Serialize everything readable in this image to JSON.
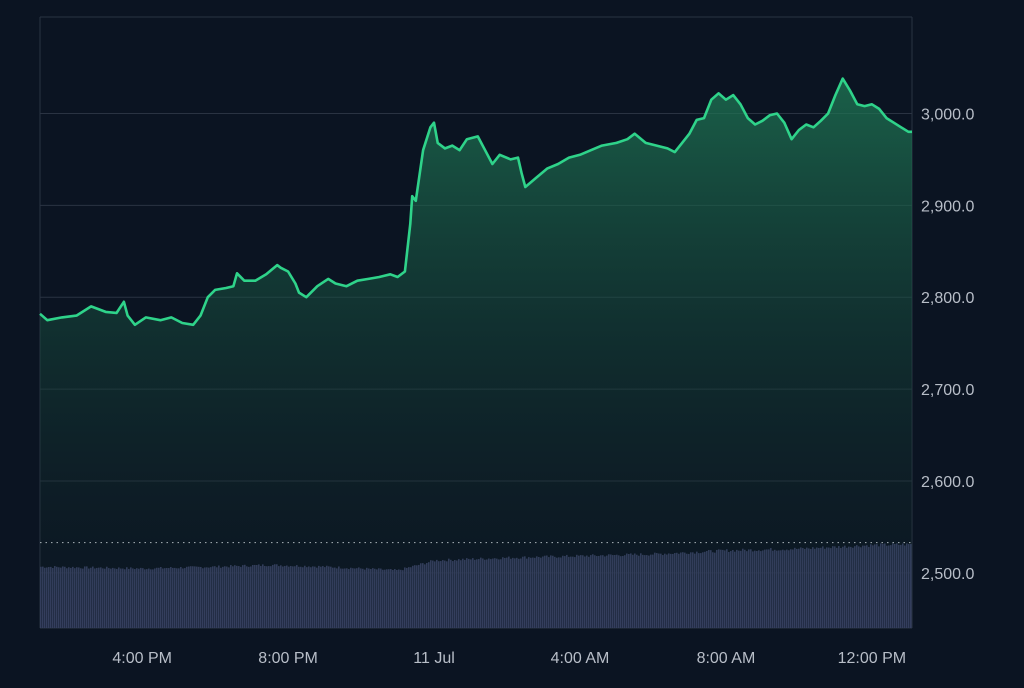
{
  "colors": {
    "background": "#0b1422",
    "grid": "#2a3342",
    "price_line": "#2fd38a",
    "area_top": "#1f7a56",
    "area_bottom": "#0e1a22",
    "volume": "#3b4468",
    "axis_text": "#b8bec8",
    "baseline_dotted": "#c4c9d1"
  },
  "chart_data": {
    "type": "area",
    "title": "",
    "xlabel": "",
    "ylabel": "",
    "y_axis_position": "right",
    "grid": true,
    "ylim": [
      2440,
      3105
    ],
    "y_ticks": [
      2500,
      2600,
      2700,
      2800,
      2900,
      3000
    ],
    "y_tick_labels": [
      "2,500.0",
      "2,600.0",
      "2,700.0",
      "2,800.0",
      "2,900.0",
      "3,000.0"
    ],
    "x_range_hours": [
      13.2,
      37.1
    ],
    "x_ticks": [
      {
        "t": 16,
        "label": "4:00 PM"
      },
      {
        "t": 20,
        "label": "8:00 PM"
      },
      {
        "t": 24,
        "label": "11 Jul"
      },
      {
        "t": 28,
        "label": "4:00 AM"
      },
      {
        "t": 32,
        "label": "8:00 AM"
      },
      {
        "t": 36,
        "label": "12:00 PM"
      }
    ],
    "reference_line": {
      "value": 2533,
      "style": "dotted"
    },
    "series": [
      {
        "points": [
          [
            13.2,
            2782
          ],
          [
            13.4,
            2775
          ],
          [
            13.8,
            2778
          ],
          [
            14.2,
            2780
          ],
          [
            14.6,
            2790
          ],
          [
            15.0,
            2784
          ],
          [
            15.3,
            2783
          ],
          [
            15.5,
            2795
          ],
          [
            15.6,
            2780
          ],
          [
            15.8,
            2770
          ],
          [
            16.1,
            2778
          ],
          [
            16.5,
            2775
          ],
          [
            16.8,
            2778
          ],
          [
            17.1,
            2772
          ],
          [
            17.4,
            2770
          ],
          [
            17.6,
            2780
          ],
          [
            17.8,
            2800
          ],
          [
            18.0,
            2808
          ],
          [
            18.3,
            2810
          ],
          [
            18.5,
            2812
          ],
          [
            18.6,
            2826
          ],
          [
            18.8,
            2818
          ],
          [
            19.1,
            2818
          ],
          [
            19.4,
            2825
          ],
          [
            19.7,
            2835
          ],
          [
            19.8,
            2832
          ],
          [
            20.0,
            2828
          ],
          [
            20.2,
            2815
          ],
          [
            20.3,
            2805
          ],
          [
            20.5,
            2800
          ],
          [
            20.8,
            2812
          ],
          [
            21.1,
            2820
          ],
          [
            21.3,
            2815
          ],
          [
            21.6,
            2812
          ],
          [
            21.9,
            2818
          ],
          [
            22.2,
            2820
          ],
          [
            22.5,
            2822
          ],
          [
            22.8,
            2825
          ],
          [
            23.0,
            2822
          ],
          [
            23.2,
            2828
          ],
          [
            23.35,
            2880
          ],
          [
            23.4,
            2910
          ],
          [
            23.5,
            2905
          ],
          [
            23.7,
            2960
          ],
          [
            23.9,
            2985
          ],
          [
            24.0,
            2990
          ],
          [
            24.1,
            2968
          ],
          [
            24.3,
            2962
          ],
          [
            24.5,
            2965
          ],
          [
            24.7,
            2960
          ],
          [
            24.9,
            2972
          ],
          [
            25.2,
            2975
          ],
          [
            25.4,
            2960
          ],
          [
            25.6,
            2945
          ],
          [
            25.8,
            2955
          ],
          [
            26.1,
            2950
          ],
          [
            26.3,
            2952
          ],
          [
            26.4,
            2935
          ],
          [
            26.5,
            2920
          ],
          [
            26.8,
            2930
          ],
          [
            27.1,
            2940
          ],
          [
            27.4,
            2945
          ],
          [
            27.7,
            2952
          ],
          [
            28.0,
            2955
          ],
          [
            28.3,
            2960
          ],
          [
            28.6,
            2965
          ],
          [
            29.0,
            2968
          ],
          [
            29.3,
            2972
          ],
          [
            29.5,
            2978
          ],
          [
            29.8,
            2968
          ],
          [
            30.1,
            2965
          ],
          [
            30.4,
            2962
          ],
          [
            30.6,
            2958
          ],
          [
            30.8,
            2968
          ],
          [
            31.0,
            2978
          ],
          [
            31.2,
            2993
          ],
          [
            31.4,
            2995
          ],
          [
            31.6,
            3015
          ],
          [
            31.8,
            3022
          ],
          [
            32.0,
            3015
          ],
          [
            32.2,
            3020
          ],
          [
            32.4,
            3010
          ],
          [
            32.6,
            2995
          ],
          [
            32.8,
            2988
          ],
          [
            33.0,
            2992
          ],
          [
            33.2,
            2998
          ],
          [
            33.4,
            3000
          ],
          [
            33.6,
            2990
          ],
          [
            33.8,
            2972
          ],
          [
            34.0,
            2982
          ],
          [
            34.2,
            2988
          ],
          [
            34.4,
            2985
          ],
          [
            34.6,
            2992
          ],
          [
            34.8,
            3000
          ],
          [
            35.0,
            3020
          ],
          [
            35.2,
            3038
          ],
          [
            35.4,
            3025
          ],
          [
            35.6,
            3010
          ],
          [
            35.8,
            3008
          ],
          [
            36.0,
            3010
          ],
          [
            36.2,
            3005
          ],
          [
            36.4,
            2995
          ],
          [
            36.6,
            2990
          ],
          [
            36.8,
            2985
          ],
          [
            37.0,
            2980
          ],
          [
            37.1,
            2980
          ]
        ]
      }
    ],
    "volume": {
      "ylim": [
        0,
        100
      ],
      "points": [
        [
          13.2,
          68
        ],
        [
          16.0,
          66
        ],
        [
          18.0,
          68
        ],
        [
          19.5,
          70
        ],
        [
          21.0,
          68
        ],
        [
          22.5,
          65
        ],
        [
          23.0,
          64
        ],
        [
          24.0,
          75
        ],
        [
          26.0,
          78
        ],
        [
          28.0,
          80
        ],
        [
          30.0,
          82
        ],
        [
          32.0,
          86
        ],
        [
          34.0,
          88
        ],
        [
          35.0,
          90
        ],
        [
          36.0,
          92
        ],
        [
          37.1,
          93
        ]
      ]
    }
  }
}
